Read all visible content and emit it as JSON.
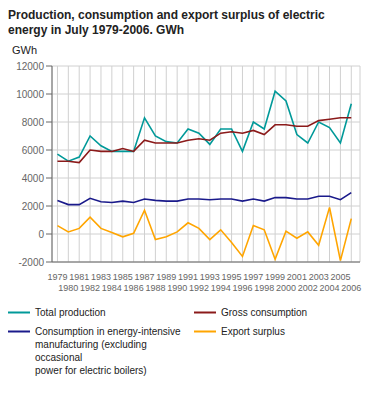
{
  "chart_data": {
    "type": "line",
    "title": "Production, consumption and export surplus of electric\nenergy in July 1979-2006. GWh",
    "y_label": "GWh",
    "x": [
      1979,
      1980,
      1981,
      1982,
      1983,
      1984,
      1985,
      1986,
      1987,
      1988,
      1989,
      1990,
      1991,
      1992,
      1993,
      1994,
      1995,
      1996,
      1997,
      1998,
      1999,
      2000,
      2001,
      2002,
      2003,
      2004,
      2005,
      2006
    ],
    "series": [
      {
        "name": "Total production",
        "color": "#009999",
        "values": [
          5700,
          5200,
          5500,
          7000,
          6300,
          5900,
          5900,
          5900,
          8300,
          7000,
          6600,
          6500,
          7500,
          7200,
          6400,
          7500,
          7500,
          5900,
          8000,
          7500,
          10200,
          9500,
          7100,
          6500,
          8000,
          7600,
          6500,
          9300
        ]
      },
      {
        "name": "Gross consumption",
        "color": "#8B1A1A",
        "values": [
          5200,
          5200,
          5100,
          6000,
          5900,
          5900,
          6100,
          5900,
          6700,
          6500,
          6500,
          6500,
          6700,
          6800,
          6700,
          7200,
          7300,
          7200,
          7400,
          7100,
          7800,
          7800,
          7700,
          7700,
          8100,
          8200,
          8300,
          8300
        ]
      },
      {
        "name": "Consumption in energy-intensive\nmanufacturing (excluding occasional\npower for electric boilers)",
        "color": "#1A1A8B",
        "values": [
          2400,
          2100,
          2100,
          2550,
          2300,
          2250,
          2350,
          2250,
          2500,
          2400,
          2350,
          2350,
          2500,
          2500,
          2450,
          2500,
          2500,
          2350,
          2500,
          2350,
          2600,
          2600,
          2500,
          2500,
          2700,
          2700,
          2450,
          2950
        ]
      },
      {
        "name": "Export surplus",
        "color": "#FFA500",
        "values": [
          600,
          150,
          400,
          1200,
          400,
          100,
          -200,
          50,
          1700,
          -400,
          -200,
          150,
          800,
          400,
          -400,
          300,
          -600,
          -1600,
          600,
          300,
          -1800,
          200,
          -300,
          150,
          -800,
          1900,
          -1900,
          1100
        ]
      }
    ],
    "xlim": [
      1978.5,
      2006.8
    ],
    "xticks": [
      1979,
      1980,
      1981,
      1982,
      1983,
      1984,
      1985,
      1986,
      1987,
      1988,
      1989,
      1990,
      1991,
      1992,
      1993,
      1994,
      1995,
      1996,
      1997,
      1998,
      1999,
      2000,
      2001,
      2002,
      2003,
      2004,
      2005,
      2006
    ],
    "ylim": [
      -2000,
      12000
    ],
    "yticks": [
      -2000,
      0,
      2000,
      4000,
      6000,
      8000,
      10000,
      12000
    ],
    "grid": true
  }
}
